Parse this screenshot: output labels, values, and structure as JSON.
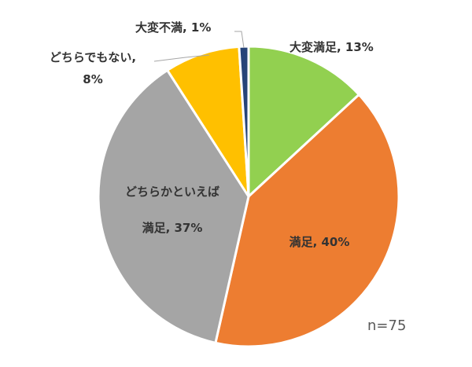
{
  "chart_data": {
    "type": "pie",
    "slices": [
      {
        "label": "大変満足",
        "value": 13,
        "value_label": "13%",
        "color": "#92d050"
      },
      {
        "label": "満足",
        "value": 40,
        "value_label": "40%",
        "color": "#ed7d31"
      },
      {
        "label": "どちらかといえば満足",
        "value": 37,
        "value_label": "37%",
        "color": "#a5a5a5"
      },
      {
        "label": "どちらでもない",
        "value": 8,
        "value_label": "8%",
        "color": "#ffc000"
      },
      {
        "label": "大変不満",
        "value": 1,
        "value_label": "1%",
        "color": "#264478"
      }
    ],
    "annotation": "n=75",
    "start_angle_deg": 0,
    "direction": "clockwise",
    "slice_border": "#ffffff"
  },
  "labels": {
    "s0": "大変満足, 13%",
    "s1": "満足, 40%",
    "s2_line1": "どちらかといえば",
    "s2_line2": "満足, 37%",
    "s3_line1": "どちらでもない,",
    "s3_line2": "8%",
    "s4": "大変不満, 1%"
  }
}
